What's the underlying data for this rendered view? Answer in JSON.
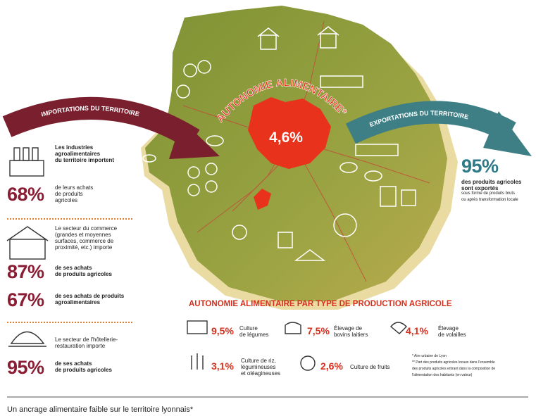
{
  "map": {
    "title": "AUTONOMIE ALIMENTAIRE*",
    "value": "4,6%"
  },
  "imports": {
    "label": "IMPORTATIONS DU TERRITOIRE",
    "items": [
      {
        "text": [
          "Les industries",
          "agroalimentaires",
          "du territoire importent"
        ],
        "value": "68%",
        "detail": [
          "de leurs achats",
          "de produits",
          "agricoles"
        ]
      },
      {
        "text": [
          "Le secteur du commerce",
          "(grandes et moyennes",
          "surfaces, commerce de",
          "proximité, etc.) importe"
        ],
        "value": "87%",
        "detail": [
          "de ses achats",
          "de produits agricoles"
        ],
        "value2": "67%",
        "detail2": [
          "de ses achats de produits",
          "agroalimentaires"
        ]
      },
      {
        "text": [
          "Le secteur de l'hôtellerie-",
          "restauration importe"
        ],
        "value": "95%",
        "detail": [
          "de ses achats",
          "de produits agricoles"
        ]
      }
    ]
  },
  "exports": {
    "label": "EXPORTATIONS DU TERRITOIRE",
    "value": "95%",
    "text": [
      "des produits agricoles",
      "sont exportés"
    ],
    "note": [
      "sous forme de produits bruts",
      "ou après transformation locale"
    ]
  },
  "production": {
    "title": "AUTONOMIE ALIMENTAIRE PAR TYPE DE PRODUCTION AGRICOLE",
    "items": [
      {
        "value": "9,5%",
        "label": [
          "Culture",
          "de légumes"
        ]
      },
      {
        "value": "7,5%",
        "label": [
          "Élevage de",
          "bovins laitiers"
        ]
      },
      {
        "value": "4,1%",
        "label": [
          "Élevage",
          "de volailles"
        ]
      },
      {
        "value": "3,1%",
        "label": [
          "Culture de riz,",
          "légumineuses",
          "et oléagineuses"
        ]
      },
      {
        "value": "2,6%",
        "label": [
          "Culture de fruits"
        ]
      }
    ]
  },
  "notes": [
    "* Aire urbaine de Lyon",
    "** Part des produits agricoles locaux dans l'ensemble",
    "des produits agricoles entrant dans la composition de",
    "l'alimentation des habitants (en valeur)"
  ],
  "caption": "Un ancrage alimentaire faible sur le territoire lyonnais*"
}
